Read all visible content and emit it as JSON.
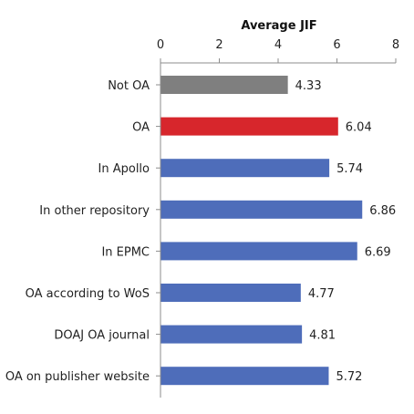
{
  "chart_data": {
    "type": "bar",
    "orientation": "horizontal",
    "title": "",
    "xlabel": "Average JIF",
    "ylabel": "",
    "xlim": [
      0,
      8
    ],
    "xticks": [
      0,
      2,
      4,
      6,
      8
    ],
    "x_axis_position": "top",
    "grid": false,
    "categories": [
      "Not OA",
      "OA",
      "In Apollo",
      "In other repository",
      "In EPMC",
      "OA according to WoS",
      "DOAJ OA journal",
      "OA on publisher website"
    ],
    "values": [
      4.33,
      6.04,
      5.74,
      6.86,
      6.69,
      4.77,
      4.81,
      5.72
    ],
    "value_labels": [
      "4.33",
      "6.04",
      "5.74",
      "6.86",
      "6.69",
      "4.77",
      "4.81",
      "5.72"
    ],
    "colors": [
      "#7f7f7f",
      "#d7262c",
      "#4e6dba",
      "#4e6dba",
      "#4e6dba",
      "#4e6dba",
      "#4e6dba",
      "#4e6dba"
    ]
  }
}
